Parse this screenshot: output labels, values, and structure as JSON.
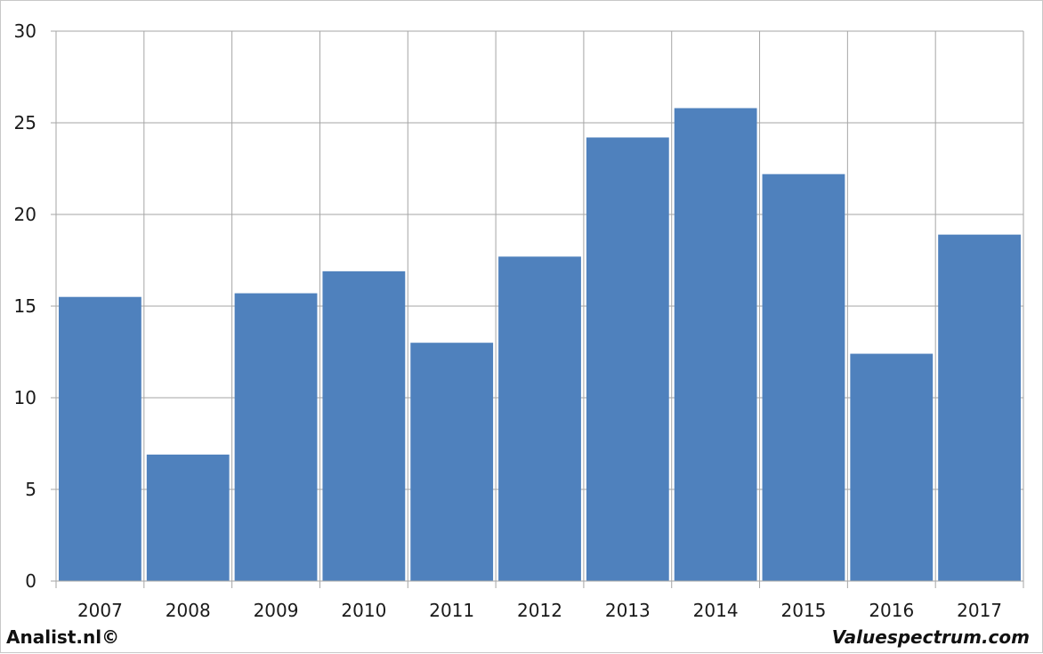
{
  "chart_data": {
    "type": "bar",
    "categories": [
      "2007",
      "2008",
      "2009",
      "2010",
      "2011",
      "2012",
      "2013",
      "2014",
      "2015",
      "2016",
      "2017"
    ],
    "values": [
      15.5,
      6.9,
      15.7,
      16.9,
      13.0,
      17.7,
      24.2,
      25.8,
      22.2,
      12.4,
      18.9
    ],
    "title": "",
    "xlabel": "",
    "ylabel": "",
    "ylim": [
      0,
      30
    ],
    "yticks": [
      "0",
      "5",
      "10",
      "15",
      "20",
      "25",
      "30"
    ],
    "grid": true,
    "bar_color": "#4f81bd",
    "grid_color": "#a6a6a6"
  },
  "footer": {
    "left": "Analist.nl©",
    "right": "Valuespectrum.com"
  }
}
